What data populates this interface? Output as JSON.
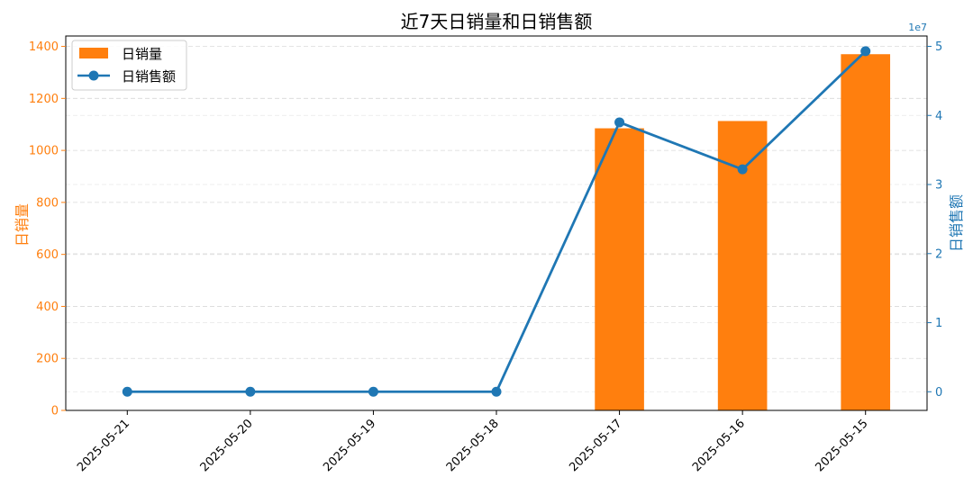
{
  "chart_data": {
    "type": "bar",
    "title": "近7天日销量和日销售额",
    "categories": [
      "2025-05-21",
      "2025-05-20",
      "2025-05-19",
      "2025-05-18",
      "2025-05-17",
      "2025-05-16",
      "2025-05-15"
    ],
    "series": [
      {
        "name": "日销量",
        "type": "bar",
        "axis": "left",
        "color": "#ff7f0e",
        "values": [
          0,
          0,
          0,
          0,
          1085,
          1113,
          1370
        ]
      },
      {
        "name": "日销售额",
        "type": "line",
        "axis": "right",
        "color": "#1f77b4",
        "values": [
          0,
          0,
          0,
          0,
          39000000,
          32200000,
          49300000
        ]
      }
    ],
    "y_left": {
      "label": "日销量",
      "ylim": [
        0,
        1440
      ],
      "ticks": [
        0,
        200,
        400,
        600,
        800,
        1000,
        1200,
        1400
      ]
    },
    "y_right": {
      "label": "日销售额",
      "ylim": [
        -2700000,
        51500000
      ],
      "ticks": [
        0,
        1,
        2,
        3,
        4,
        5
      ],
      "tick_scale": 10000000,
      "offset_text": "1e7"
    },
    "grid": true,
    "legend_position": "top-left"
  }
}
